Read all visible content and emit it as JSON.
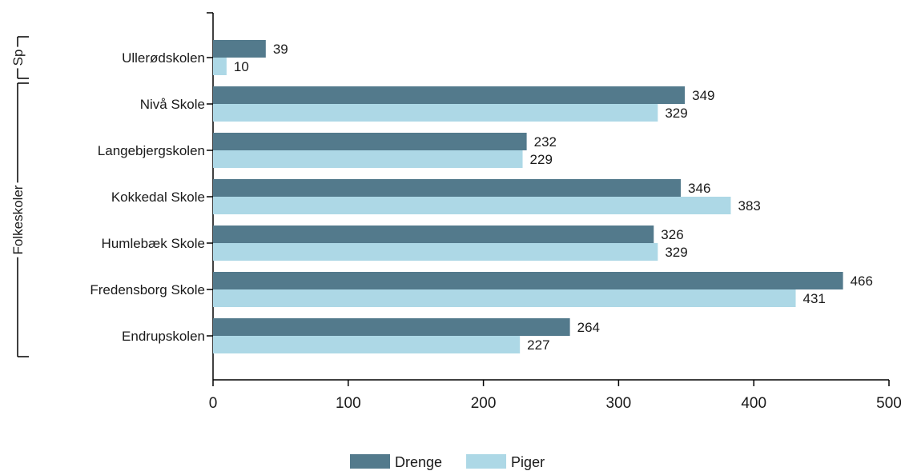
{
  "chart_data": {
    "type": "bar",
    "orientation": "horizontal",
    "categories": [
      "Ullerødskolen",
      "Nivå Skole",
      "Langebjergskolen",
      "Kokkedal Skole",
      "Humlebæk Skole",
      "Fredensborg Skole",
      "Endrupskolen"
    ],
    "series": [
      {
        "name": "Drenge",
        "color": "#537a8c",
        "values": [
          39,
          349,
          232,
          346,
          326,
          466,
          264
        ]
      },
      {
        "name": "Piger",
        "color": "#add8e6",
        "values": [
          10,
          329,
          229,
          383,
          329,
          431,
          227
        ]
      }
    ],
    "groups": [
      {
        "label": "Sp",
        "categories": [
          "Ullerødskolen"
        ]
      },
      {
        "label": "Folkeskoler",
        "categories": [
          "Nivå Skole",
          "Langebjergskolen",
          "Kokkedal Skole",
          "Humlebæk Skole",
          "Fredensborg Skole",
          "Endrupskolen"
        ]
      }
    ],
    "xticks": [
      0,
      100,
      200,
      300,
      400,
      500
    ],
    "xlim": [
      0,
      500
    ],
    "grid": false,
    "legend_position": "bottom",
    "title": "",
    "xlabel": "",
    "ylabel": ""
  }
}
